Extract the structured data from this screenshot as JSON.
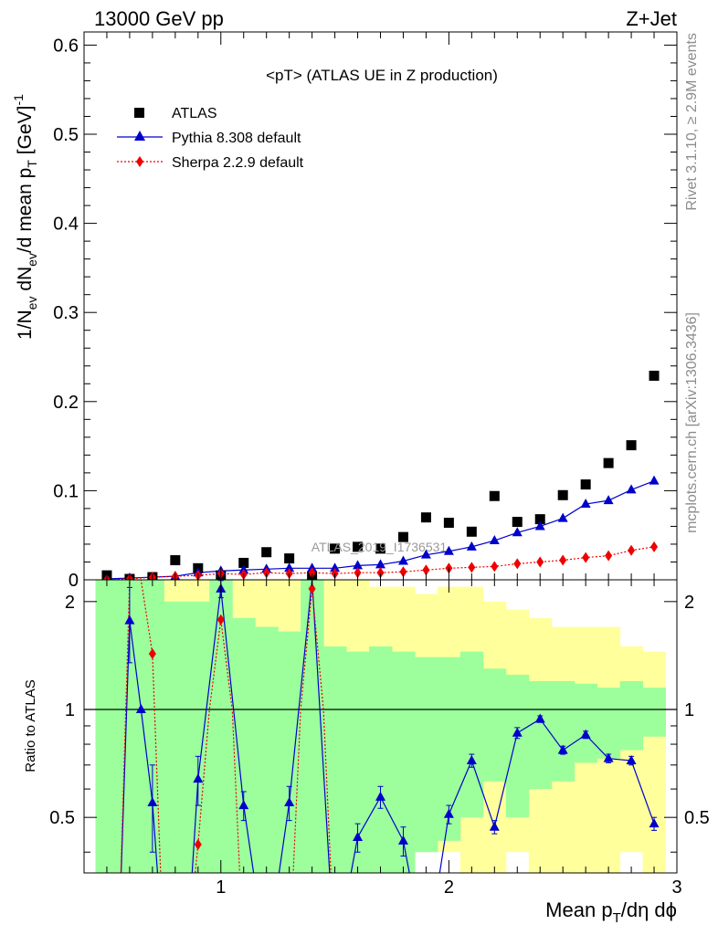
{
  "header": {
    "left": "13000 GeV pp",
    "right": "Z+Jet"
  },
  "side_text": {
    "rivet": "Rivet 3.1.10, ≥ 2.9M events",
    "mcplots": "mcplots.cern.ch [arXiv:1306.3436]"
  },
  "watermark": "ATLAS_2019_I1736531",
  "colors": {
    "atlas": "#000000",
    "pythia": "#0000cc",
    "sherpa": "#ee0000",
    "band_green": "#9cff9c",
    "band_yellow": "#ffff9c"
  },
  "chart_data": [
    {
      "type": "scatter",
      "title": "<pT> (ATLAS UE in Z production)",
      "xlabel": "Mean p_T/dη dϕ",
      "ylabel": "1/N_ev dN_ev/d mean p_T [GeV]^-1",
      "xlim": [
        0.4,
        3.0
      ],
      "ylim": [
        0,
        0.6
      ],
      "x_ticks": [
        "1",
        "2",
        "3"
      ],
      "y_ticks": [
        "0",
        "0.1",
        "0.2",
        "0.3",
        "0.4",
        "0.5",
        "0.6"
      ],
      "x": [
        0.5,
        0.6,
        0.7,
        0.8,
        0.9,
        1.0,
        1.1,
        1.2,
        1.3,
        1.4,
        1.5,
        1.6,
        1.7,
        1.8,
        1.9,
        2.0,
        2.1,
        2.2,
        2.3,
        2.4,
        2.5,
        2.6,
        2.7,
        2.8,
        2.9
      ],
      "series": [
        {
          "name": "ATLAS",
          "values": [
            0.005,
            0.001,
            0.003,
            0.022,
            0.013,
            0.005,
            0.019,
            0.031,
            0.024,
            0.004,
            0.035,
            0.037,
            0.035,
            0.048,
            0.07,
            0.064,
            0.054,
            0.094,
            0.065,
            0.068,
            0.095,
            0.107,
            0.131,
            0.151,
            0.229
          ]
        },
        {
          "name": "Pythia 8.308 default",
          "values": [
            0.001,
            0.002,
            0.003,
            0.004,
            0.008,
            0.01,
            0.011,
            0.012,
            0.013,
            0.013,
            0.013,
            0.016,
            0.017,
            0.021,
            0.028,
            0.032,
            0.037,
            0.044,
            0.053,
            0.06,
            0.069,
            0.085,
            0.089,
            0.101,
            0.111
          ]
        },
        {
          "name": "Sherpa 2.2.9 default",
          "values": [
            0.0,
            0.001,
            0.003,
            0.004,
            0.005,
            0.007,
            0.006,
            0.008,
            0.007,
            0.008,
            0.007,
            0.008,
            0.008,
            0.009,
            0.011,
            0.013,
            0.014,
            0.015,
            0.018,
            0.02,
            0.022,
            0.025,
            0.027,
            0.033,
            0.037
          ]
        }
      ],
      "legend": "top-left"
    },
    {
      "type": "line",
      "ylabel": "Ratio to ATLAS",
      "xlim": [
        0.4,
        3.0
      ],
      "ylim": [
        0.35,
        2.3
      ],
      "y_ticks": [
        "0.5",
        "1",
        "2"
      ],
      "reference_line": 1,
      "bins": [
        0.45,
        0.55,
        0.65,
        0.75,
        0.85,
        0.95,
        1.05,
        1.15,
        1.25,
        1.35,
        1.45,
        1.55,
        1.65,
        1.75,
        1.85,
        1.95,
        2.05,
        2.15,
        2.25,
        2.35,
        2.45,
        2.55,
        2.65,
        2.75,
        2.85,
        2.95
      ],
      "band_yellow": {
        "lower": [
          0.3,
          0.3,
          0.3,
          0.3,
          0.3,
          0.3,
          0.3,
          0.3,
          0.3,
          0.3,
          0.3,
          0.3,
          0.3,
          0.3,
          0.4,
          0.4,
          0.3,
          0.3,
          0.4,
          0.3,
          0.3,
          0.3,
          0.35,
          0.4,
          0.3
        ],
        "upper": [
          2.3,
          2.3,
          2.3,
          2.3,
          2.3,
          2.3,
          2.3,
          2.3,
          2.3,
          2.3,
          2.3,
          2.3,
          2.2,
          2.2,
          2.1,
          2.2,
          2.2,
          2.0,
          1.9,
          1.8,
          1.7,
          1.7,
          1.7,
          1.5,
          1.45
        ]
      },
      "band_green": {
        "lower": [
          0.3,
          0.3,
          0.3,
          0.3,
          0.3,
          0.3,
          0.3,
          0.3,
          0.3,
          0.3,
          0.3,
          0.3,
          0.3,
          0.3,
          0.4,
          0.43,
          0.5,
          0.63,
          0.5,
          0.6,
          0.63,
          0.71,
          0.73,
          0.77,
          0.84
        ],
        "upper": [
          2.3,
          2.3,
          2.3,
          2.0,
          2.0,
          2.3,
          1.8,
          1.7,
          1.65,
          2.3,
          1.5,
          1.45,
          1.5,
          1.45,
          1.4,
          1.4,
          1.45,
          1.3,
          1.25,
          1.2,
          1.2,
          1.18,
          1.15,
          1.2,
          1.15
        ]
      },
      "series": [
        {
          "name": "Pythia 8.308 default",
          "x": [
            0.55,
            0.6,
            0.65,
            0.7,
            0.75,
            0.85,
            0.9,
            1.0,
            1.1,
            1.2,
            1.3,
            1.4,
            1.5,
            1.6,
            1.7,
            1.8,
            1.9,
            2.0,
            2.1,
            2.2,
            2.3,
            2.4,
            2.5,
            2.6,
            2.7,
            2.8,
            2.9
          ],
          "values": [
            0.2,
            1.77,
            1.0,
            0.55,
            0.2,
            0.2,
            0.64,
            2.17,
            0.54,
            0.2,
            0.55,
            2.3,
            0.2,
            0.44,
            0.57,
            0.43,
            0.2,
            0.51,
            0.72,
            0.47,
            0.86,
            0.94,
            0.77,
            0.85,
            0.73,
            0.72,
            0.48
          ],
          "errors": [
            0,
            0.42,
            0,
            0.15,
            0,
            0,
            0.1,
            0.12,
            0.05,
            0,
            0.06,
            0.05,
            0,
            0.04,
            0.04,
            0.04,
            0,
            0.03,
            0.03,
            0.02,
            0.03,
            0.02,
            0.02,
            0.02,
            0.02,
            0.02,
            0.02
          ]
        },
        {
          "name": "Sherpa 2.2.9 default",
          "x": [
            0.55,
            0.6,
            0.65,
            0.7,
            0.75,
            0.85,
            0.9,
            0.95,
            1.0,
            1.05,
            1.1,
            1.3,
            1.35,
            1.4,
            1.45,
            1.5
          ],
          "values": [
            0.2,
            2.3,
            2.3,
            1.43,
            0.2,
            0.2,
            0.42,
            1.0,
            1.78,
            1.0,
            0.2,
            0.2,
            1.0,
            2.17,
            1.0,
            0.2
          ]
        }
      ]
    }
  ]
}
